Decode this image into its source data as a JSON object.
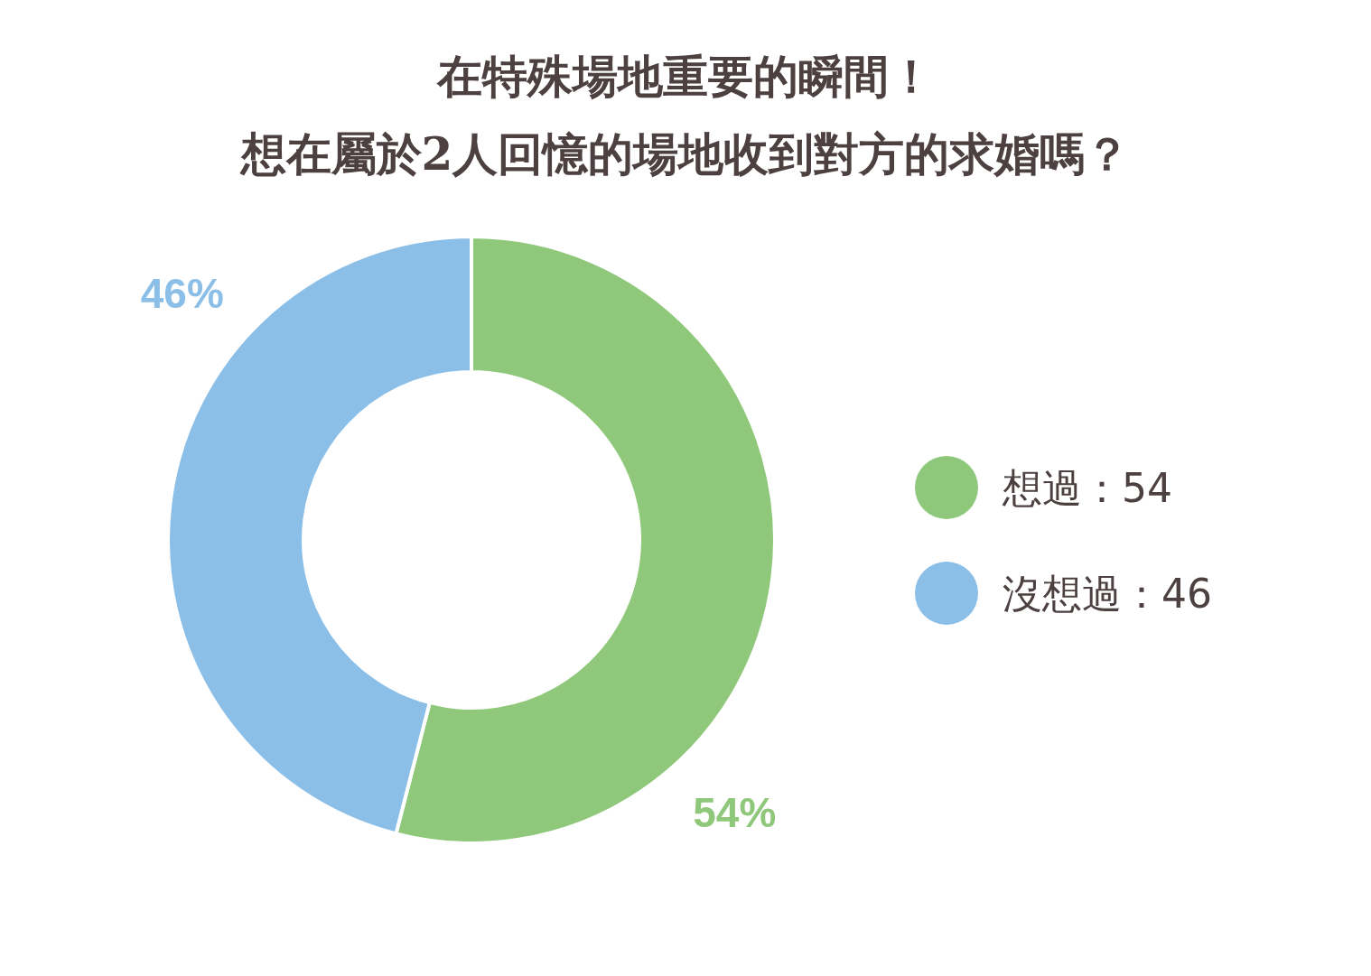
{
  "chart_data": {
    "type": "donut",
    "title": "在特殊場地重要的瞬間！",
    "subtitle": "想在屬於2人回憶的場地收到對方的求婚嗎？",
    "categories": [
      "想過：54",
      "沒想過：46"
    ],
    "values": [
      54,
      46
    ],
    "colors": [
      "#8fc87a",
      "#8bbfe8"
    ],
    "value_labels": [
      "54%",
      "46%"
    ],
    "legend": "right"
  }
}
